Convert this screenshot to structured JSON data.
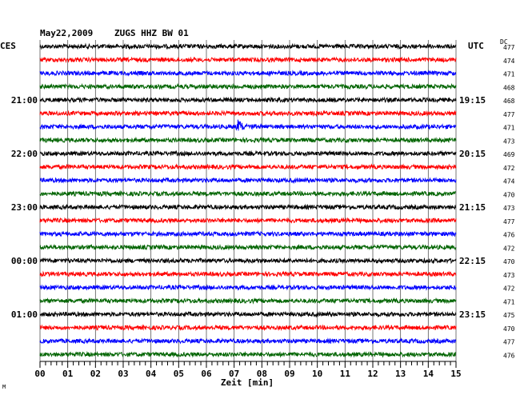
{
  "header": {
    "date": "May22,2009",
    "station": "ZUGS HHZ BW 01"
  },
  "chart_data": {
    "type": "line",
    "title": "May22,2009   ZUGS HHZ BW 01",
    "xlabel": "Zeit [min]",
    "xlim": [
      0,
      15
    ],
    "x_ticks": [
      "00",
      "01",
      "02",
      "03",
      "04",
      "05",
      "06",
      "07",
      "08",
      "09",
      "10",
      "11",
      "12",
      "13",
      "14",
      "15"
    ],
    "left_axis_label": "CES",
    "right_axis_label": "UTC",
    "dc_label": "DC",
    "trace_colors": [
      "#000000",
      "#ff0000",
      "#0000ff",
      "#006400"
    ],
    "left_hour_labels": [
      {
        "trace": 4,
        "text": "21:00"
      },
      {
        "trace": 8,
        "text": "22:00"
      },
      {
        "trace": 12,
        "text": "23:00"
      },
      {
        "trace": 16,
        "text": "00:00"
      },
      {
        "trace": 20,
        "text": "01:00"
      }
    ],
    "right_time_labels": [
      {
        "trace": 4,
        "text": "19:15"
      },
      {
        "trace": 8,
        "text": "20:15"
      },
      {
        "trace": 12,
        "text": "21:15"
      },
      {
        "trace": 16,
        "text": "22:15"
      },
      {
        "trace": 20,
        "text": "23:15"
      }
    ],
    "dc_values": [
      477,
      474,
      471,
      468,
      468,
      477,
      471,
      473,
      469,
      472,
      474,
      470,
      473,
      477,
      476,
      472,
      470,
      473,
      472,
      471,
      475,
      470,
      477,
      476
    ],
    "events": [
      {
        "trace": 6,
        "minute": 7.1,
        "label": ""
      }
    ],
    "corner_mark": "M"
  }
}
